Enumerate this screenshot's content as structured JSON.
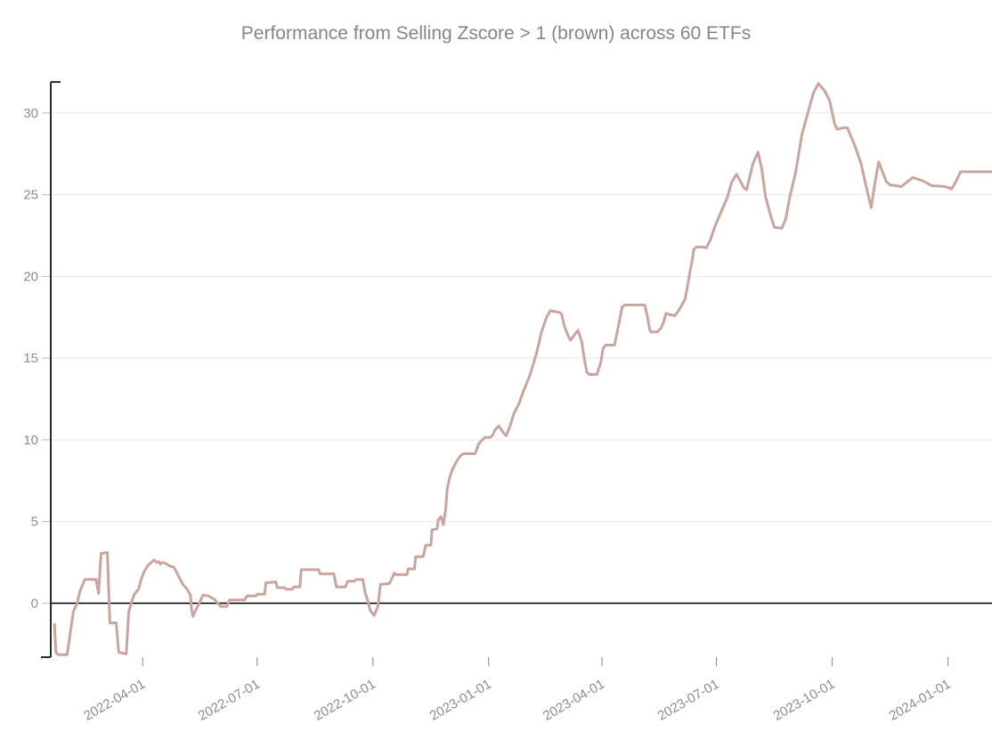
{
  "title": "Performance  from Selling Zscore > 1 (brown) across 60 ETFs",
  "colors": {
    "line": "#c9a59e",
    "title_text": "#858585",
    "tick_label": "#8c8c8c",
    "gridline": "#e7e7e7",
    "zero_line": "#111111",
    "axis_spine": "#2a2a2a",
    "x_tick": "#999999",
    "y_tick": "#bbbbbb",
    "background": "#ffffff"
  },
  "chart_data": {
    "type": "line",
    "title": "Performance  from Selling Zscore > 1 (brown) across 60 ETFs",
    "xlabel": "",
    "ylabel": "",
    "legend": "none",
    "grid": "horizontal-only",
    "x_tick_labels": [
      "2022-04-01",
      "2022-07-01",
      "2022-10-01",
      "2023-01-01",
      "2023-04-01",
      "2023-07-01",
      "2023-10-01",
      "2024-01-01"
    ],
    "y_ticks": [
      0,
      5,
      10,
      15,
      20,
      25,
      30
    ],
    "xlim": [
      "2022-01-18",
      "2024-02-05"
    ],
    "ylim": [
      -3.3,
      31.9
    ],
    "series": [
      {
        "name": "Selling Zscore > 1 (brown) across 60 ETFs",
        "color": "#c9a59e",
        "points": [
          [
            "2022-01-21",
            -1.3
          ],
          [
            "2022-01-22",
            -3.0
          ],
          [
            "2022-01-24",
            -3.15
          ],
          [
            "2022-01-31",
            -3.15
          ],
          [
            "2022-02-02",
            -2.1
          ],
          [
            "2022-02-05",
            -0.5
          ],
          [
            "2022-02-08",
            0.0
          ],
          [
            "2022-02-10",
            0.7
          ],
          [
            "2022-02-14",
            1.45
          ],
          [
            "2022-02-23",
            1.45
          ],
          [
            "2022-02-25",
            0.6
          ],
          [
            "2022-02-27",
            3.05
          ],
          [
            "2022-03-04",
            3.1
          ],
          [
            "2022-03-06",
            -1.2
          ],
          [
            "2022-03-11",
            -1.2
          ],
          [
            "2022-03-13",
            -3.0
          ],
          [
            "2022-03-19",
            -3.1
          ],
          [
            "2022-03-21",
            -0.5
          ],
          [
            "2022-03-25",
            0.5
          ],
          [
            "2022-03-29",
            0.9
          ],
          [
            "2022-03-31",
            1.5
          ],
          [
            "2022-04-02",
            1.9
          ],
          [
            "2022-04-05",
            2.3
          ],
          [
            "2022-04-08",
            2.5
          ],
          [
            "2022-04-10",
            2.65
          ],
          [
            "2022-04-12",
            2.5
          ],
          [
            "2022-04-14",
            2.55
          ],
          [
            "2022-04-15",
            2.4
          ],
          [
            "2022-04-17",
            2.5
          ],
          [
            "2022-04-19",
            2.45
          ],
          [
            "2022-04-22",
            2.3
          ],
          [
            "2022-04-26",
            2.2
          ],
          [
            "2022-04-28",
            1.9
          ],
          [
            "2022-05-01",
            1.45
          ],
          [
            "2022-05-03",
            1.15
          ],
          [
            "2022-05-06",
            0.9
          ],
          [
            "2022-05-09",
            0.5
          ],
          [
            "2022-05-10",
            -0.45
          ],
          [
            "2022-05-11",
            -0.8
          ],
          [
            "2022-05-13",
            -0.45
          ],
          [
            "2022-05-16",
            0.0
          ],
          [
            "2022-05-19",
            0.5
          ],
          [
            "2022-05-23",
            0.45
          ],
          [
            "2022-05-28",
            0.25
          ],
          [
            "2022-06-02",
            -0.2
          ],
          [
            "2022-06-07",
            -0.2
          ],
          [
            "2022-06-09",
            0.2
          ],
          [
            "2022-06-21",
            0.2
          ],
          [
            "2022-06-23",
            0.45
          ],
          [
            "2022-06-30",
            0.45
          ],
          [
            "2022-07-01",
            0.55
          ],
          [
            "2022-07-07",
            0.55
          ],
          [
            "2022-07-08",
            1.25
          ],
          [
            "2022-07-16",
            1.3
          ],
          [
            "2022-07-17",
            0.95
          ],
          [
            "2022-07-23",
            0.95
          ],
          [
            "2022-07-24",
            0.85
          ],
          [
            "2022-07-29",
            0.85
          ],
          [
            "2022-07-30",
            1.0
          ],
          [
            "2022-08-04",
            1.0
          ],
          [
            "2022-08-05",
            2.05
          ],
          [
            "2022-08-19",
            2.05
          ],
          [
            "2022-08-20",
            1.8
          ],
          [
            "2022-08-31",
            1.8
          ],
          [
            "2022-09-02",
            1.0
          ],
          [
            "2022-09-09",
            1.0
          ],
          [
            "2022-09-11",
            1.35
          ],
          [
            "2022-09-16",
            1.35
          ],
          [
            "2022-09-18",
            1.45
          ],
          [
            "2022-09-23",
            1.45
          ],
          [
            "2022-09-25",
            0.6
          ],
          [
            "2022-09-27",
            0.15
          ],
          [
            "2022-09-29",
            -0.45
          ],
          [
            "2022-10-02",
            -0.75
          ],
          [
            "2022-10-05",
            -0.2
          ],
          [
            "2022-10-07",
            1.15
          ],
          [
            "2022-10-14",
            1.2
          ],
          [
            "2022-10-16",
            1.5
          ],
          [
            "2022-10-18",
            1.85
          ],
          [
            "2022-10-19",
            1.75
          ],
          [
            "2022-10-28",
            1.75
          ],
          [
            "2022-10-29",
            2.1
          ],
          [
            "2022-11-03",
            2.1
          ],
          [
            "2022-11-04",
            2.85
          ],
          [
            "2022-11-10",
            2.85
          ],
          [
            "2022-11-12",
            3.55
          ],
          [
            "2022-11-16",
            3.55
          ],
          [
            "2022-11-17",
            4.5
          ],
          [
            "2022-11-21",
            4.55
          ],
          [
            "2022-11-22",
            5.1
          ],
          [
            "2022-11-24",
            5.3
          ],
          [
            "2022-11-26",
            4.8
          ],
          [
            "2022-11-28",
            5.85
          ],
          [
            "2022-11-29",
            6.95
          ],
          [
            "2022-12-01",
            7.7
          ],
          [
            "2022-12-03",
            8.15
          ],
          [
            "2022-12-06",
            8.6
          ],
          [
            "2022-12-08",
            8.85
          ],
          [
            "2022-12-10",
            9.05
          ],
          [
            "2022-12-12",
            9.15
          ],
          [
            "2022-12-21",
            9.15
          ],
          [
            "2022-12-22",
            9.3
          ],
          [
            "2022-12-24",
            9.75
          ],
          [
            "2022-12-27",
            10.0
          ],
          [
            "2022-12-29",
            10.15
          ],
          [
            "2023-01-02",
            10.15
          ],
          [
            "2023-01-04",
            10.25
          ],
          [
            "2023-01-06",
            10.6
          ],
          [
            "2023-01-09",
            10.85
          ],
          [
            "2023-01-13",
            10.4
          ],
          [
            "2023-01-15",
            10.25
          ],
          [
            "2023-01-18",
            10.85
          ],
          [
            "2023-01-21",
            11.6
          ],
          [
            "2023-01-25",
            12.2
          ],
          [
            "2023-01-28",
            12.85
          ],
          [
            "2023-02-03",
            14.0
          ],
          [
            "2023-02-08",
            15.3
          ],
          [
            "2023-02-12",
            16.6
          ],
          [
            "2023-02-16",
            17.5
          ],
          [
            "2023-02-19",
            17.9
          ],
          [
            "2023-02-26",
            17.8
          ],
          [
            "2023-02-28",
            17.7
          ],
          [
            "2023-03-02",
            17.0
          ],
          [
            "2023-03-05",
            16.4
          ],
          [
            "2023-03-07",
            16.1
          ],
          [
            "2023-03-11",
            16.5
          ],
          [
            "2023-03-13",
            16.7
          ],
          [
            "2023-03-16",
            16.0
          ],
          [
            "2023-03-18",
            14.95
          ],
          [
            "2023-03-20",
            14.15
          ],
          [
            "2023-03-22",
            14.0
          ],
          [
            "2023-03-28",
            14.0
          ],
          [
            "2023-03-31",
            14.7
          ],
          [
            "2023-04-02",
            15.6
          ],
          [
            "2023-04-04",
            15.8
          ],
          [
            "2023-04-11",
            15.8
          ],
          [
            "2023-04-15",
            17.3
          ],
          [
            "2023-04-17",
            18.1
          ],
          [
            "2023-04-19",
            18.25
          ],
          [
            "2023-05-05",
            18.25
          ],
          [
            "2023-05-07",
            17.6
          ],
          [
            "2023-05-09",
            16.75
          ],
          [
            "2023-05-10",
            16.6
          ],
          [
            "2023-05-15",
            16.6
          ],
          [
            "2023-05-18",
            16.85
          ],
          [
            "2023-05-20",
            17.2
          ],
          [
            "2023-05-22",
            17.75
          ],
          [
            "2023-05-25",
            17.65
          ],
          [
            "2023-05-29",
            17.6
          ],
          [
            "2023-06-01",
            17.9
          ],
          [
            "2023-06-06",
            18.6
          ],
          [
            "2023-06-08",
            19.4
          ],
          [
            "2023-06-10",
            20.3
          ],
          [
            "2023-06-12",
            21.1
          ],
          [
            "2023-06-13",
            21.65
          ],
          [
            "2023-06-15",
            21.8
          ],
          [
            "2023-06-21",
            21.8
          ],
          [
            "2023-06-23",
            21.75
          ],
          [
            "2023-06-26",
            22.2
          ],
          [
            "2023-06-30",
            23.1
          ],
          [
            "2023-07-05",
            24.0
          ],
          [
            "2023-07-10",
            24.9
          ],
          [
            "2023-07-13",
            25.75
          ],
          [
            "2023-07-17",
            26.25
          ],
          [
            "2023-07-23",
            25.4
          ],
          [
            "2023-07-25",
            25.3
          ],
          [
            "2023-07-30",
            26.9
          ],
          [
            "2023-08-03",
            27.6
          ],
          [
            "2023-08-06",
            26.6
          ],
          [
            "2023-08-09",
            24.9
          ],
          [
            "2023-08-13",
            23.75
          ],
          [
            "2023-08-16",
            23.0
          ],
          [
            "2023-08-22",
            22.95
          ],
          [
            "2023-08-25",
            23.5
          ],
          [
            "2023-08-28",
            24.75
          ],
          [
            "2023-09-02",
            26.4
          ],
          [
            "2023-09-07",
            28.7
          ],
          [
            "2023-09-12",
            30.1
          ],
          [
            "2023-09-16",
            31.2
          ],
          [
            "2023-09-20",
            31.8
          ],
          [
            "2023-09-25",
            31.35
          ],
          [
            "2023-09-29",
            30.75
          ],
          [
            "2023-10-03",
            29.3
          ],
          [
            "2023-10-05",
            29.0
          ],
          [
            "2023-10-10",
            29.1
          ],
          [
            "2023-10-13",
            29.1
          ],
          [
            "2023-10-19",
            28.0
          ],
          [
            "2023-10-24",
            26.9
          ],
          [
            "2023-10-28",
            25.5
          ],
          [
            "2023-11-01",
            24.2
          ],
          [
            "2023-11-04",
            25.75
          ],
          [
            "2023-11-07",
            27.0
          ],
          [
            "2023-11-13",
            25.8
          ],
          [
            "2023-11-16",
            25.6
          ],
          [
            "2023-11-25",
            25.5
          ],
          [
            "2023-12-04",
            26.05
          ],
          [
            "2023-12-12",
            25.85
          ],
          [
            "2023-12-19",
            25.55
          ],
          [
            "2023-12-30",
            25.5
          ],
          [
            "2024-01-04",
            25.35
          ],
          [
            "2024-01-08",
            25.9
          ],
          [
            "2024-01-11",
            26.4
          ],
          [
            "2024-02-05",
            26.4
          ]
        ]
      }
    ]
  }
}
